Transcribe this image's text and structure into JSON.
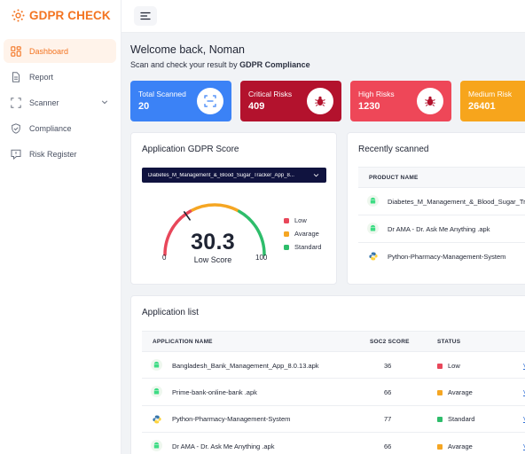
{
  "app": {
    "brand": "GDPR CHECK"
  },
  "sidebar": {
    "items": [
      {
        "label": "Dashboard",
        "icon": "dashboard-icon",
        "active": true
      },
      {
        "label": "Report",
        "icon": "file-icon"
      },
      {
        "label": "Scanner",
        "icon": "scan-icon",
        "expandable": true
      },
      {
        "label": "Compliance",
        "icon": "shield-check-icon"
      },
      {
        "label": "Risk Register",
        "icon": "alert-icon"
      }
    ]
  },
  "header": {
    "welcome": "Welcome back, Noman",
    "subtitle_prefix": "Scan and check your result by ",
    "subtitle_bold": "GDPR Compliance"
  },
  "stats": [
    {
      "label": "Total Scanned",
      "value": "20",
      "color": "#3b82f6",
      "icon": "scan-icon"
    },
    {
      "label": "Critical Risks",
      "value": "409",
      "color": "#b3122d",
      "icon": "bug-icon"
    },
    {
      "label": "High Risks",
      "value": "1230",
      "color": "#ee4758",
      "icon": "bug-icon"
    },
    {
      "label": "Medium Risk",
      "value": "26401",
      "color": "#f7a51c",
      "icon": "bug-icon"
    }
  ],
  "score_card": {
    "title": "Application GDPR Score",
    "selected_app": "Diabetes_M_Management_&_Blood_Sugar_Tracker_App_8...",
    "score": "30.3",
    "score_fraction": 0.303,
    "score_label": "Low Score",
    "min": "0",
    "max": "100",
    "legend": [
      {
        "label": "Low",
        "color": "#e8475a"
      },
      {
        "label": "Avarage",
        "color": "#f5a623"
      },
      {
        "label": "Standard",
        "color": "#2ebd6b"
      }
    ]
  },
  "recent": {
    "title": "Recently scanned",
    "column": "PRODUCT NAME",
    "rows": [
      {
        "name": "Diabetes_M_Management_&_Blood_Sugar_Tr",
        "icon": "android-icon"
      },
      {
        "name": "Dr AMA - Dr. Ask Me Anything .apk",
        "icon": "android-icon"
      },
      {
        "name": "Python-Pharmacy-Management-System",
        "icon": "python-icon"
      }
    ]
  },
  "app_list": {
    "title": "Application list",
    "columns": {
      "name": "APPLICATION NAME",
      "score": "SOC2 SCORE",
      "status": "STATUS"
    },
    "link_label": "V",
    "rows": [
      {
        "name": "Bangladesh_Bank_Management_App_8.0.13.apk",
        "score": "36",
        "status": "Low",
        "status_color": "#e8475a",
        "icon": "android-icon"
      },
      {
        "name": "Prime-bank-online-bank .apk",
        "score": "66",
        "status": "Avarage",
        "status_color": "#f5a623",
        "icon": "android-icon"
      },
      {
        "name": "Python-Pharmacy-Management-System",
        "score": "77",
        "status": "Standard",
        "status_color": "#2ebd6b",
        "icon": "python-icon"
      },
      {
        "name": "Dr AMA - Dr. Ask Me Anything .apk",
        "score": "66",
        "status": "Avarage",
        "status_color": "#f5a623",
        "icon": "android-icon"
      }
    ]
  }
}
